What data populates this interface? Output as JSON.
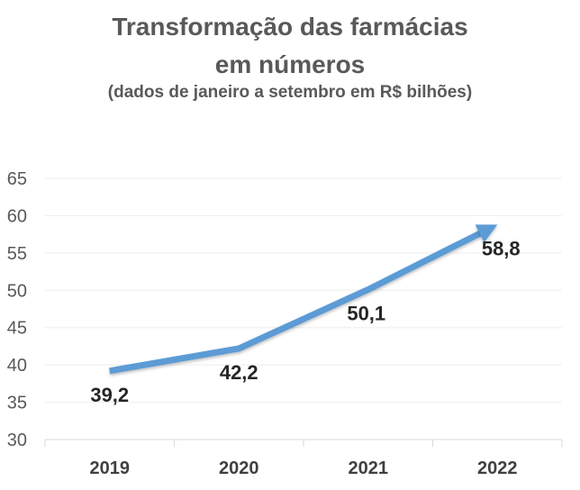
{
  "chart_data": {
    "type": "line",
    "title_line1": "Transformação das farmácias",
    "title_line2": "em números",
    "subtitle": "(dados de janeiro a setembro em R$ bilhões)",
    "categories": [
      "2019",
      "2020",
      "2021",
      "2022"
    ],
    "values": [
      39.2,
      42.2,
      50.1,
      58.8
    ],
    "data_labels": [
      "39,2",
      "42,2",
      "50,1",
      "58,8"
    ],
    "y_ticks": [
      30,
      35,
      40,
      45,
      50,
      55,
      60,
      65
    ],
    "y_tick_labels": [
      "30",
      "35",
      "40",
      "45",
      "50",
      "55",
      "60",
      "65"
    ],
    "ylim": [
      30,
      65
    ],
    "grid": true,
    "line_color": "#5B9BD5",
    "gridline_color": "#eeeeee",
    "axis_color": "#d9d9d9",
    "xlabel": "",
    "ylabel": "",
    "legend": "none",
    "end_marker": "arrow"
  }
}
